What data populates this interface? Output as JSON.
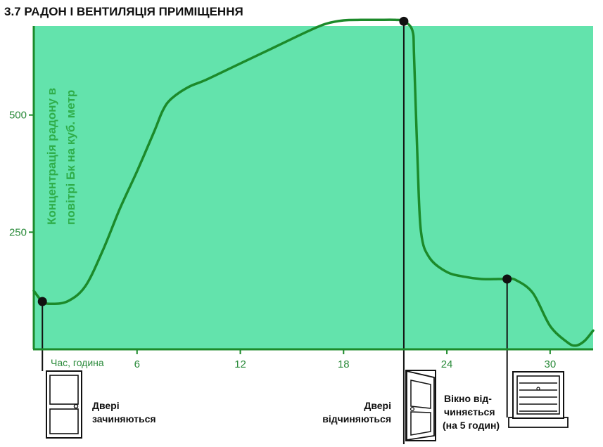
{
  "title": "3.7 РАДОН І ВЕНТИЛЯЦІЯ ПРИМІЩЕННЯ",
  "colors": {
    "plot_bg": "#63e3ac",
    "curve": "#1c8a2a",
    "axis": "#1c8a2a",
    "text": "#111111",
    "ylabel": "#2fae4a"
  },
  "chart_data": {
    "type": "line",
    "title": "3.7 РАДОН І ВЕНТИЛЯЦІЯ ПРИМІЩЕННЯ",
    "xlabel": "Час, година",
    "ylabel_lines": [
      "Концентрація радону в",
      "повітрі Бк на куб. метр"
    ],
    "xlim": [
      0,
      32.5
    ],
    "ylim": [
      0,
      690
    ],
    "xticks": [
      6,
      12,
      18,
      24,
      30
    ],
    "yticks": [
      250,
      500
    ],
    "grid": false,
    "series": [
      {
        "x": [
          0,
          0.5,
          1,
          2,
          3,
          4,
          5,
          6,
          7,
          7.5,
          8,
          9,
          10,
          12,
          14,
          16,
          17,
          18,
          19,
          20,
          21,
          21.5,
          22,
          22.1,
          22.3,
          22.5,
          23,
          24,
          25,
          26,
          27,
          27.5,
          28,
          29,
          30,
          31,
          31.5,
          32,
          32.5
        ],
        "y": [
          125,
          102,
          97,
          103,
          135,
          210,
          300,
          380,
          465,
          510,
          535,
          560,
          575,
          610,
          645,
          680,
          695,
          702,
          703,
          703,
          703,
          700,
          680,
          620,
          400,
          250,
          195,
          165,
          155,
          150,
          150,
          150,
          148,
          120,
          50,
          15,
          8,
          18,
          40
        ]
      }
    ],
    "markers": [
      {
        "x": 0.5,
        "y": 102
      },
      {
        "x": 21.5,
        "y": 700
      },
      {
        "x": 27.5,
        "y": 150
      }
    ],
    "annotations": [
      {
        "x": 0.5,
        "lines": [
          "Двері",
          "зачиняються"
        ],
        "icon": "door-closed-icon"
      },
      {
        "x": 21.5,
        "lines": [
          "Двері",
          "відчиняються"
        ],
        "icon": "door-open-icon"
      },
      {
        "x": 27.5,
        "lines": [
          "Вікно від-",
          "чиняється",
          "(на 5 годин)"
        ],
        "icon": "window-icon"
      }
    ]
  }
}
